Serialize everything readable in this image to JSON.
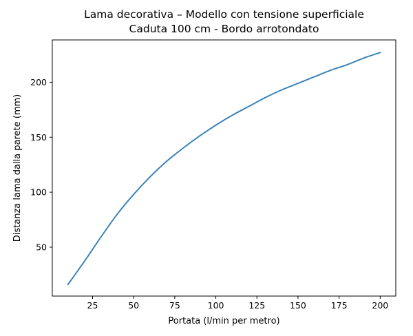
{
  "chart_data": {
    "type": "line",
    "title": "Lama decorativa – Modello con tensione superficiale",
    "subtitle": "Caduta 100 cm - Bordo arrotondato",
    "xlabel": "Portata (l/min per metro)",
    "ylabel": "Distanza lama dalla parete (mm)",
    "xlim": [
      0.5,
      209.5
    ],
    "ylim": [
      5.5,
      238.5
    ],
    "xticks": [
      25,
      50,
      75,
      100,
      125,
      150,
      175,
      200
    ],
    "yticks": [
      50,
      100,
      150,
      200
    ],
    "grid": false,
    "colors": {
      "line": "#3b82b8",
      "axes": "#000000"
    },
    "series": [
      {
        "x": [
          10,
          20,
          30,
          40,
          50,
          60,
          70,
          80,
          90,
          100,
          110,
          120,
          130,
          140,
          150,
          160,
          170,
          180,
          190,
          200
        ],
        "y": [
          16,
          37,
          59,
          80,
          98,
          114,
          128,
          140,
          151,
          161,
          170,
          178,
          186,
          193,
          199,
          205,
          211,
          216,
          222,
          227
        ]
      }
    ]
  }
}
